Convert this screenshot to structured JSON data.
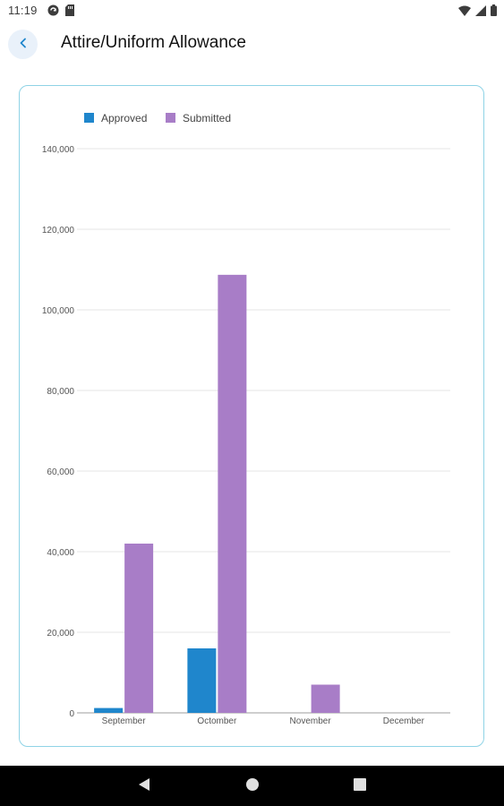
{
  "status_bar": {
    "time": "11:19",
    "left_icons": [
      "sync-icon",
      "sd-card-icon"
    ],
    "right_icons": [
      "wifi-icon",
      "signal-icon",
      "battery-icon"
    ]
  },
  "app_bar": {
    "back_icon": "chevron-left-icon",
    "title": "Attire/Uniform Allowance"
  },
  "chart_data": {
    "type": "bar",
    "title": "",
    "xlabel": "",
    "ylabel": "",
    "categories": [
      "September",
      "Octomber",
      "November",
      "December"
    ],
    "series": [
      {
        "name": "Approved",
        "color": "#1f86cc",
        "values": [
          1200,
          16000,
          0,
          0
        ]
      },
      {
        "name": "Submitted",
        "color": "#a87dc7",
        "values": [
          42000,
          108700,
          7000,
          0
        ]
      }
    ],
    "ylim": [
      0,
      140000
    ],
    "yticks": [
      "0",
      "20,000",
      "40,000",
      "60,000",
      "80,000",
      "100,000",
      "120,000",
      "140,000"
    ],
    "ytick_values": [
      0,
      20000,
      40000,
      60000,
      80000,
      100000,
      120000,
      140000
    ],
    "grid": true,
    "legend_position": "top-left"
  },
  "nav_bar": {
    "icons": [
      "back-triangle-icon",
      "home-circle-icon",
      "recents-square-icon"
    ]
  },
  "colors": {
    "accent": "#1f86cc",
    "card_border": "#8fd3e6",
    "back_button_bg": "#e9f1fa"
  }
}
